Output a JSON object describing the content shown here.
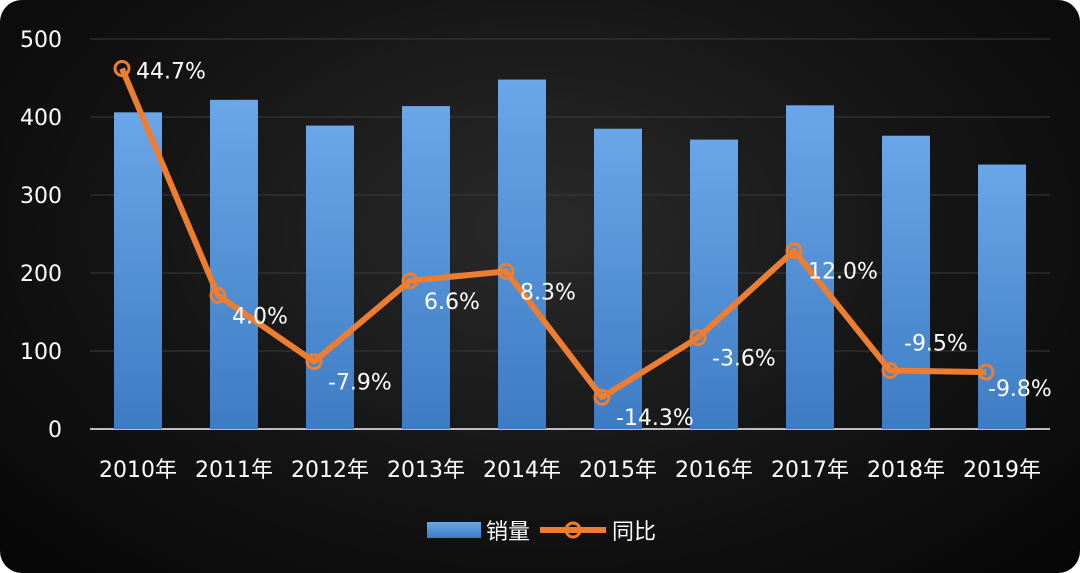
{
  "chart_data": {
    "type": "bar",
    "categories": [
      "2010年",
      "2011年",
      "2012年",
      "2013年",
      "2014年",
      "2015年",
      "2016年",
      "2017年",
      "2018年",
      "2019年"
    ],
    "series": [
      {
        "name": "销量",
        "type": "bar",
        "axis": "left",
        "values": [
          406,
          422,
          389,
          414,
          448,
          385,
          371,
          415,
          376,
          339
        ]
      },
      {
        "name": "同比",
        "type": "line",
        "axis": "right",
        "values": [
          44.7,
          4.0,
          -7.9,
          6.6,
          8.3,
          -14.3,
          -3.6,
          12.0,
          -9.5,
          -9.8
        ],
        "labels": [
          "44.7%",
          "4.0%",
          "-7.9%",
          "6.6%",
          "8.3%",
          "-14.3%",
          "-3.6%",
          "12.0%",
          "-9.5%",
          "-9.8%"
        ]
      }
    ],
    "yticks": [
      "0",
      "100",
      "200",
      "300",
      "400",
      "500"
    ],
    "ylim": [
      0,
      500
    ],
    "y2lim": [
      -20,
      50
    ],
    "y2_shown": false,
    "grid": true,
    "legend": "bottom",
    "colors": {
      "bar": "#4f8fd6",
      "line": "#ed7d31",
      "grid": "#3a3a3a",
      "text": "#ffffff"
    }
  }
}
